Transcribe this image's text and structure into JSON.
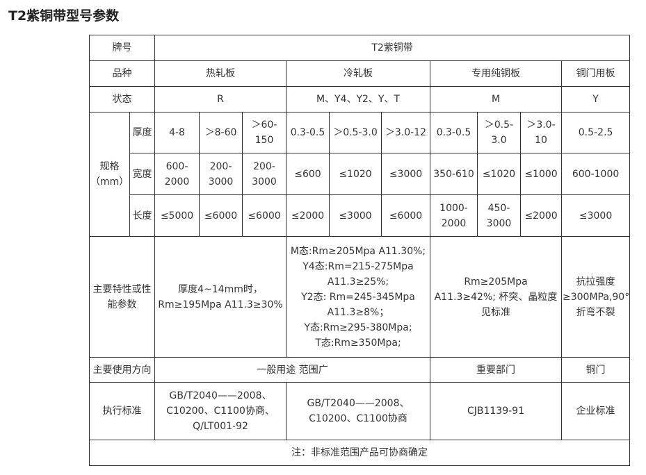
{
  "title": "T2紫铜带型号参数",
  "table": {
    "r_grade": {
      "label": "牌号",
      "value": "T2紫铜带"
    },
    "r_variety": {
      "label": "品种",
      "values": [
        "热轧板",
        "冷轧板",
        "专用纯铜板",
        "铜门用板"
      ]
    },
    "r_state": {
      "label": "状态",
      "values": [
        "R",
        "M、Y4、Y2、Y、T",
        "M",
        "Y"
      ]
    },
    "spec": {
      "label": "规格\n（mm）",
      "thickness": {
        "label": "厚度",
        "values": [
          "4-8",
          "＞8-60",
          "＞60-\n150",
          "0.3-0.5",
          "＞0.5-3.0",
          "＞3.0-12",
          "0.3-0.5",
          "＞0.5-\n3.0",
          "＞3.0-\n10",
          "0.5-2.5"
        ]
      },
      "width": {
        "label": "宽度",
        "values": [
          "600-\n2000",
          "200-\n3000",
          "200-\n3000",
          "≤600",
          "≤1020",
          "≤3000",
          "350-610",
          "≤1020",
          "≤1000",
          "600-1000"
        ]
      },
      "length": {
        "label": "长度",
        "values": [
          "≤5000",
          "≤6000",
          "≤6000",
          "≤2000",
          "≤3000",
          "≤6000",
          "1000-\n2000",
          "450-\n3000",
          "≤2000",
          "≤3000"
        ]
      }
    },
    "r_props": {
      "label": "主要特性或性\n能参数",
      "values": [
        "厚度4~14mm时，\nRm≥195Mpa A11.3≥30%",
        "M态:Rm≥205Mpa A11.30%;\nY4态:Rm=215-275Mpa\nA11.3≥25%;\nY2态: Rm=245-345Mpa\nA11.3≥8%；\nY态:Rm≥295-380Mpa;\nT态:Rm≥350Mpa;",
        "Rm≥205Mpa\nA11.3≥42%; 杯突、晶粒度\n见标准",
        "抗拉强度\n≥300MPa,90°\n折弯不裂"
      ]
    },
    "r_use": {
      "label": "主要使用方向",
      "values": [
        "一般用途 范围广",
        "重要部门",
        "铜门"
      ]
    },
    "r_std": {
      "label": "执行标准",
      "values": [
        "GB/T2040——2008、\nC10200、C1100协商、\nQ/LT001-92",
        "GB/T2040——2008、\nC10200、C1100协商",
        "CJB1139-91",
        "企业标准"
      ]
    },
    "note": "注：非标准范围产品可协商确定"
  }
}
